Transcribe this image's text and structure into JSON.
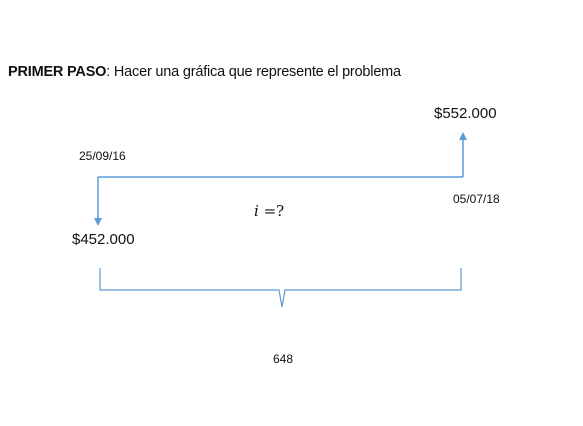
{
  "heading": {
    "bold": "PRIMER PASO",
    "rest": ": Hacer una gráfica que represente el problema"
  },
  "diagram": {
    "future_value": "$552.000",
    "present_value": "$452.000",
    "start_date": "25/09/16",
    "end_date": "05/07/18",
    "rate_symbol": "i",
    "rate_expression": " =?",
    "period_count": "648",
    "line_color": "#5b9bd5"
  }
}
